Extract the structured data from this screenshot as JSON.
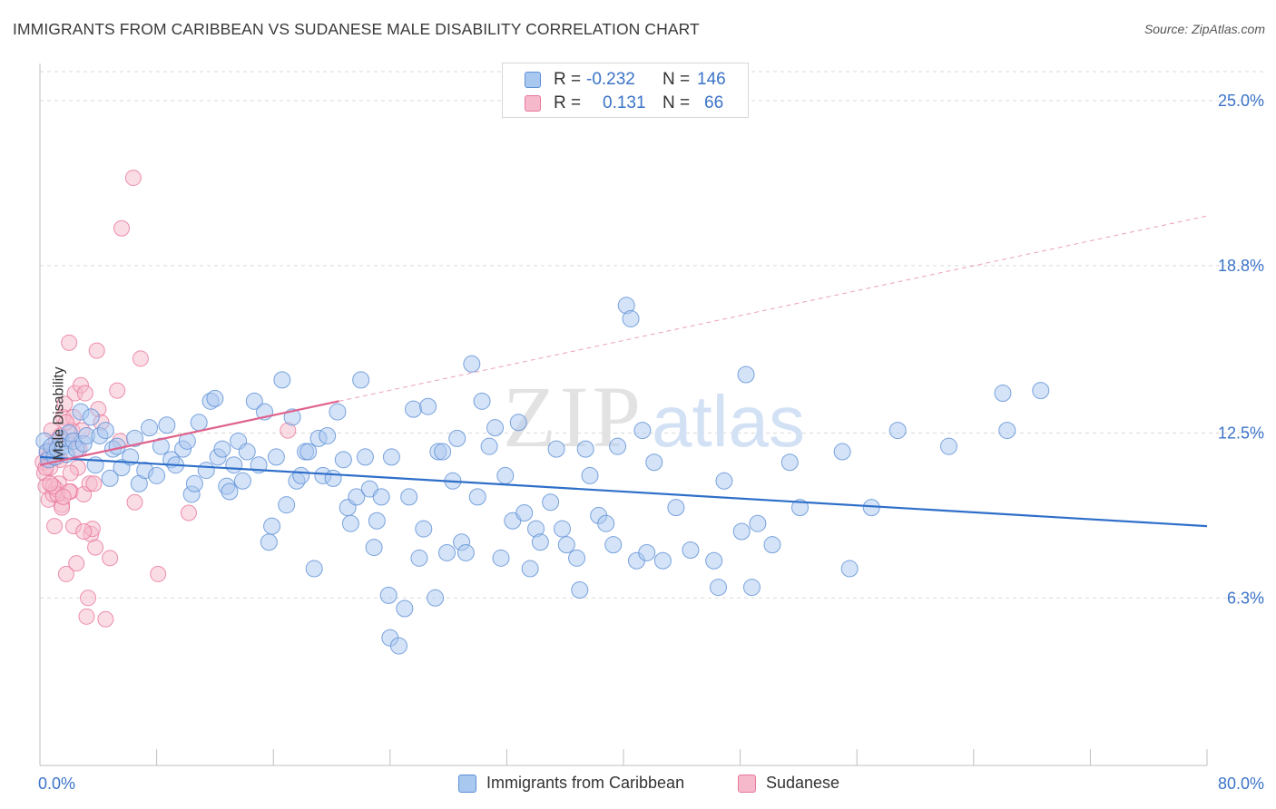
{
  "title": "IMMIGRANTS FROM CARIBBEAN VS SUDANESE MALE DISABILITY CORRELATION CHART",
  "source": "Source: ZipAtlas.com",
  "watermark": {
    "zip": "ZIP",
    "atlas": "atlas"
  },
  "legend_top": {
    "rows": [
      {
        "r_label": "R =",
        "r_value": "-0.232",
        "n_label": "N =",
        "n_value": "146"
      },
      {
        "r_label": "R =",
        "r_value": "0.131",
        "n_label": "N =",
        "n_value": "66"
      }
    ]
  },
  "colors": {
    "caribbean_fill": "#a9c8ef",
    "caribbean_stroke": "#5b8fd6",
    "caribbean_line": "#2f6fc9",
    "sudanese_fill": "#f6b9cc",
    "sudanese_stroke": "#e8779b",
    "sudanese_line": "#e0628c",
    "grid": "#d9d9d9",
    "axis_label": "#3b73c8"
  },
  "chart_data": {
    "type": "scatter",
    "title": "IMMIGRANTS FROM CARIBBEAN VS SUDANESE MALE DISABILITY CORRELATION CHART",
    "xlabel": "",
    "ylabel": "Male Disability",
    "xlim": [
      0,
      80
    ],
    "ylim": [
      0,
      26.4
    ],
    "x_tick_labels": [
      "0.0%",
      "80.0%"
    ],
    "y_ticks": [
      6.3,
      12.5,
      18.8,
      25.0
    ],
    "y_tick_labels": [
      "6.3%",
      "12.5%",
      "18.8%",
      "25.0%"
    ],
    "grid": "horizontal dashed",
    "legend_placement": "bottom-center",
    "series": [
      {
        "name": "Immigrants from Caribbean",
        "r": -0.232,
        "n": 146,
        "trend": {
          "x": [
            0,
            80
          ],
          "y": [
            11.6,
            9.0
          ]
        },
        "points": [
          [
            0.3,
            12.2
          ],
          [
            0.5,
            11.8
          ],
          [
            0.6,
            11.5
          ],
          [
            0.8,
            12.0
          ],
          [
            1.0,
            11.6
          ],
          [
            1.2,
            11.9
          ],
          [
            1.4,
            12.3
          ],
          [
            1.6,
            12.0
          ],
          [
            1.8,
            11.7
          ],
          [
            2.0,
            12.5
          ],
          [
            2.3,
            12.2
          ],
          [
            2.5,
            11.9
          ],
          [
            2.8,
            13.3
          ],
          [
            3.0,
            12.1
          ],
          [
            3.2,
            12.4
          ],
          [
            3.5,
            13.1
          ],
          [
            3.8,
            11.3
          ],
          [
            4.1,
            12.4
          ],
          [
            4.5,
            12.6
          ],
          [
            4.8,
            10.8
          ],
          [
            5.0,
            11.9
          ],
          [
            5.3,
            12.0
          ],
          [
            5.6,
            11.2
          ],
          [
            6.2,
            11.6
          ],
          [
            6.5,
            12.3
          ],
          [
            6.8,
            10.6
          ],
          [
            7.2,
            11.1
          ],
          [
            7.5,
            12.7
          ],
          [
            8.0,
            10.9
          ],
          [
            8.3,
            12.0
          ],
          [
            8.7,
            12.8
          ],
          [
            9.0,
            11.5
          ],
          [
            9.3,
            11.3
          ],
          [
            9.8,
            11.9
          ],
          [
            10.1,
            12.2
          ],
          [
            10.4,
            10.2
          ],
          [
            10.6,
            10.6
          ],
          [
            10.9,
            12.9
          ],
          [
            11.4,
            11.1
          ],
          [
            11.7,
            13.7
          ],
          [
            12.0,
            13.8
          ],
          [
            12.2,
            11.6
          ],
          [
            12.5,
            11.9
          ],
          [
            12.8,
            10.5
          ],
          [
            13.0,
            10.3
          ],
          [
            13.3,
            11.3
          ],
          [
            13.6,
            12.2
          ],
          [
            13.9,
            10.7
          ],
          [
            14.2,
            11.8
          ],
          [
            14.7,
            13.7
          ],
          [
            15.0,
            11.3
          ],
          [
            15.4,
            13.3
          ],
          [
            15.7,
            8.4
          ],
          [
            15.9,
            9.0
          ],
          [
            16.2,
            11.6
          ],
          [
            16.6,
            14.5
          ],
          [
            16.9,
            9.8
          ],
          [
            17.3,
            13.1
          ],
          [
            17.6,
            10.7
          ],
          [
            17.9,
            10.9
          ],
          [
            18.2,
            11.8
          ],
          [
            18.4,
            11.8
          ],
          [
            18.8,
            7.4
          ],
          [
            19.1,
            12.3
          ],
          [
            19.4,
            10.9
          ],
          [
            19.7,
            12.4
          ],
          [
            20.1,
            10.8
          ],
          [
            20.4,
            13.3
          ],
          [
            20.8,
            11.5
          ],
          [
            21.1,
            9.7
          ],
          [
            21.3,
            9.1
          ],
          [
            21.7,
            10.1
          ],
          [
            22.0,
            14.5
          ],
          [
            22.3,
            11.6
          ],
          [
            22.6,
            10.4
          ],
          [
            22.9,
            8.2
          ],
          [
            23.1,
            9.2
          ],
          [
            23.4,
            10.1
          ],
          [
            23.9,
            6.4
          ],
          [
            24.1,
            11.6
          ],
          [
            24.0,
            4.8
          ],
          [
            24.6,
            4.5
          ],
          [
            25.0,
            5.9
          ],
          [
            25.3,
            10.1
          ],
          [
            25.6,
            13.4
          ],
          [
            26.0,
            7.8
          ],
          [
            26.3,
            8.9
          ],
          [
            26.6,
            13.5
          ],
          [
            27.1,
            6.3
          ],
          [
            27.3,
            11.8
          ],
          [
            27.6,
            11.8
          ],
          [
            27.9,
            8.0
          ],
          [
            28.3,
            10.7
          ],
          [
            28.6,
            12.3
          ],
          [
            28.9,
            8.4
          ],
          [
            29.2,
            8.0
          ],
          [
            29.6,
            15.1
          ],
          [
            30.0,
            10.1
          ],
          [
            30.3,
            13.7
          ],
          [
            30.8,
            12.0
          ],
          [
            31.2,
            12.7
          ],
          [
            31.6,
            7.8
          ],
          [
            31.9,
            10.9
          ],
          [
            32.4,
            9.2
          ],
          [
            32.8,
            12.9
          ],
          [
            33.2,
            9.5
          ],
          [
            33.6,
            7.4
          ],
          [
            34.0,
            8.9
          ],
          [
            34.3,
            8.4
          ],
          [
            35.0,
            9.9
          ],
          [
            35.4,
            11.9
          ],
          [
            35.8,
            8.9
          ],
          [
            36.1,
            8.3
          ],
          [
            36.8,
            7.8
          ],
          [
            37.0,
            6.6
          ],
          [
            37.4,
            11.9
          ],
          [
            37.7,
            10.9
          ],
          [
            38.3,
            9.4
          ],
          [
            38.8,
            9.1
          ],
          [
            39.3,
            8.3
          ],
          [
            39.6,
            12.0
          ],
          [
            40.2,
            17.3
          ],
          [
            40.5,
            16.8
          ],
          [
            40.9,
            7.7
          ],
          [
            41.3,
            12.6
          ],
          [
            41.6,
            8.0
          ],
          [
            42.1,
            11.4
          ],
          [
            42.7,
            7.7
          ],
          [
            43.6,
            9.7
          ],
          [
            44.6,
            8.1
          ],
          [
            46.2,
            7.7
          ],
          [
            46.5,
            6.7
          ],
          [
            46.9,
            10.7
          ],
          [
            48.1,
            8.8
          ],
          [
            48.4,
            14.7
          ],
          [
            48.8,
            6.7
          ],
          [
            49.2,
            9.1
          ],
          [
            50.2,
            8.3
          ],
          [
            51.4,
            11.4
          ],
          [
            52.1,
            9.7
          ],
          [
            55.0,
            11.8
          ],
          [
            55.5,
            7.4
          ],
          [
            57.0,
            9.7
          ],
          [
            58.8,
            12.6
          ],
          [
            62.3,
            12.0
          ],
          [
            66.0,
            14.0
          ],
          [
            66.3,
            12.6
          ],
          [
            68.6,
            14.1
          ]
        ]
      },
      {
        "name": "Sudanese",
        "r": 0.131,
        "n": 66,
        "trend": {
          "x": [
            0,
            20.5
          ],
          "y": [
            11.3,
            13.7
          ]
        },
        "points": [
          [
            0.2,
            11.4
          ],
          [
            0.3,
            11.0
          ],
          [
            0.4,
            10.5
          ],
          [
            0.5,
            11.8
          ],
          [
            0.6,
            10.0
          ],
          [
            0.7,
            11.2
          ],
          [
            0.8,
            12.6
          ],
          [
            0.9,
            10.2
          ],
          [
            1.0,
            11.9
          ],
          [
            1.0,
            9.0
          ],
          [
            1.1,
            10.4
          ],
          [
            1.2,
            11.6
          ],
          [
            1.3,
            10.6
          ],
          [
            1.4,
            12.4
          ],
          [
            1.5,
            9.8
          ],
          [
            1.6,
            13.1
          ],
          [
            1.7,
            13.6
          ],
          [
            1.8,
            7.2
          ],
          [
            1.9,
            12.2
          ],
          [
            2.0,
            15.9
          ],
          [
            2.1,
            10.3
          ],
          [
            2.2,
            12.6
          ],
          [
            2.3,
            13.1
          ],
          [
            2.4,
            14.0
          ],
          [
            2.5,
            7.6
          ],
          [
            2.6,
            11.2
          ],
          [
            2.8,
            14.3
          ],
          [
            2.9,
            12.6
          ],
          [
            3.0,
            10.2
          ],
          [
            3.1,
            14.0
          ],
          [
            3.3,
            6.3
          ],
          [
            3.4,
            10.6
          ],
          [
            3.5,
            8.7
          ],
          [
            3.6,
            8.9
          ],
          [
            3.7,
            10.6
          ],
          [
            3.8,
            8.2
          ],
          [
            3.9,
            15.6
          ],
          [
            4.0,
            13.4
          ],
          [
            4.2,
            12.9
          ],
          [
            4.5,
            5.5
          ],
          [
            4.8,
            7.8
          ],
          [
            5.3,
            14.1
          ],
          [
            5.5,
            12.2
          ],
          [
            5.6,
            20.2
          ],
          [
            6.5,
            9.9
          ],
          [
            6.9,
            15.3
          ],
          [
            6.4,
            22.1
          ],
          [
            8.1,
            7.2
          ],
          [
            10.2,
            9.5
          ],
          [
            17.0,
            12.6
          ],
          [
            3.2,
            5.6
          ],
          [
            1.2,
            10.2
          ],
          [
            2.7,
            11.9
          ],
          [
            0.9,
            10.5
          ],
          [
            2.0,
            10.3
          ],
          [
            1.5,
            9.7
          ],
          [
            2.3,
            9.0
          ],
          [
            0.6,
            11.6
          ],
          [
            1.4,
            11.5
          ],
          [
            3.0,
            8.8
          ],
          [
            1.8,
            12.9
          ],
          [
            2.1,
            11.0
          ],
          [
            0.4,
            11.2
          ],
          [
            1.1,
            12.2
          ],
          [
            0.7,
            10.6
          ],
          [
            1.6,
            10.1
          ]
        ]
      }
    ]
  }
}
